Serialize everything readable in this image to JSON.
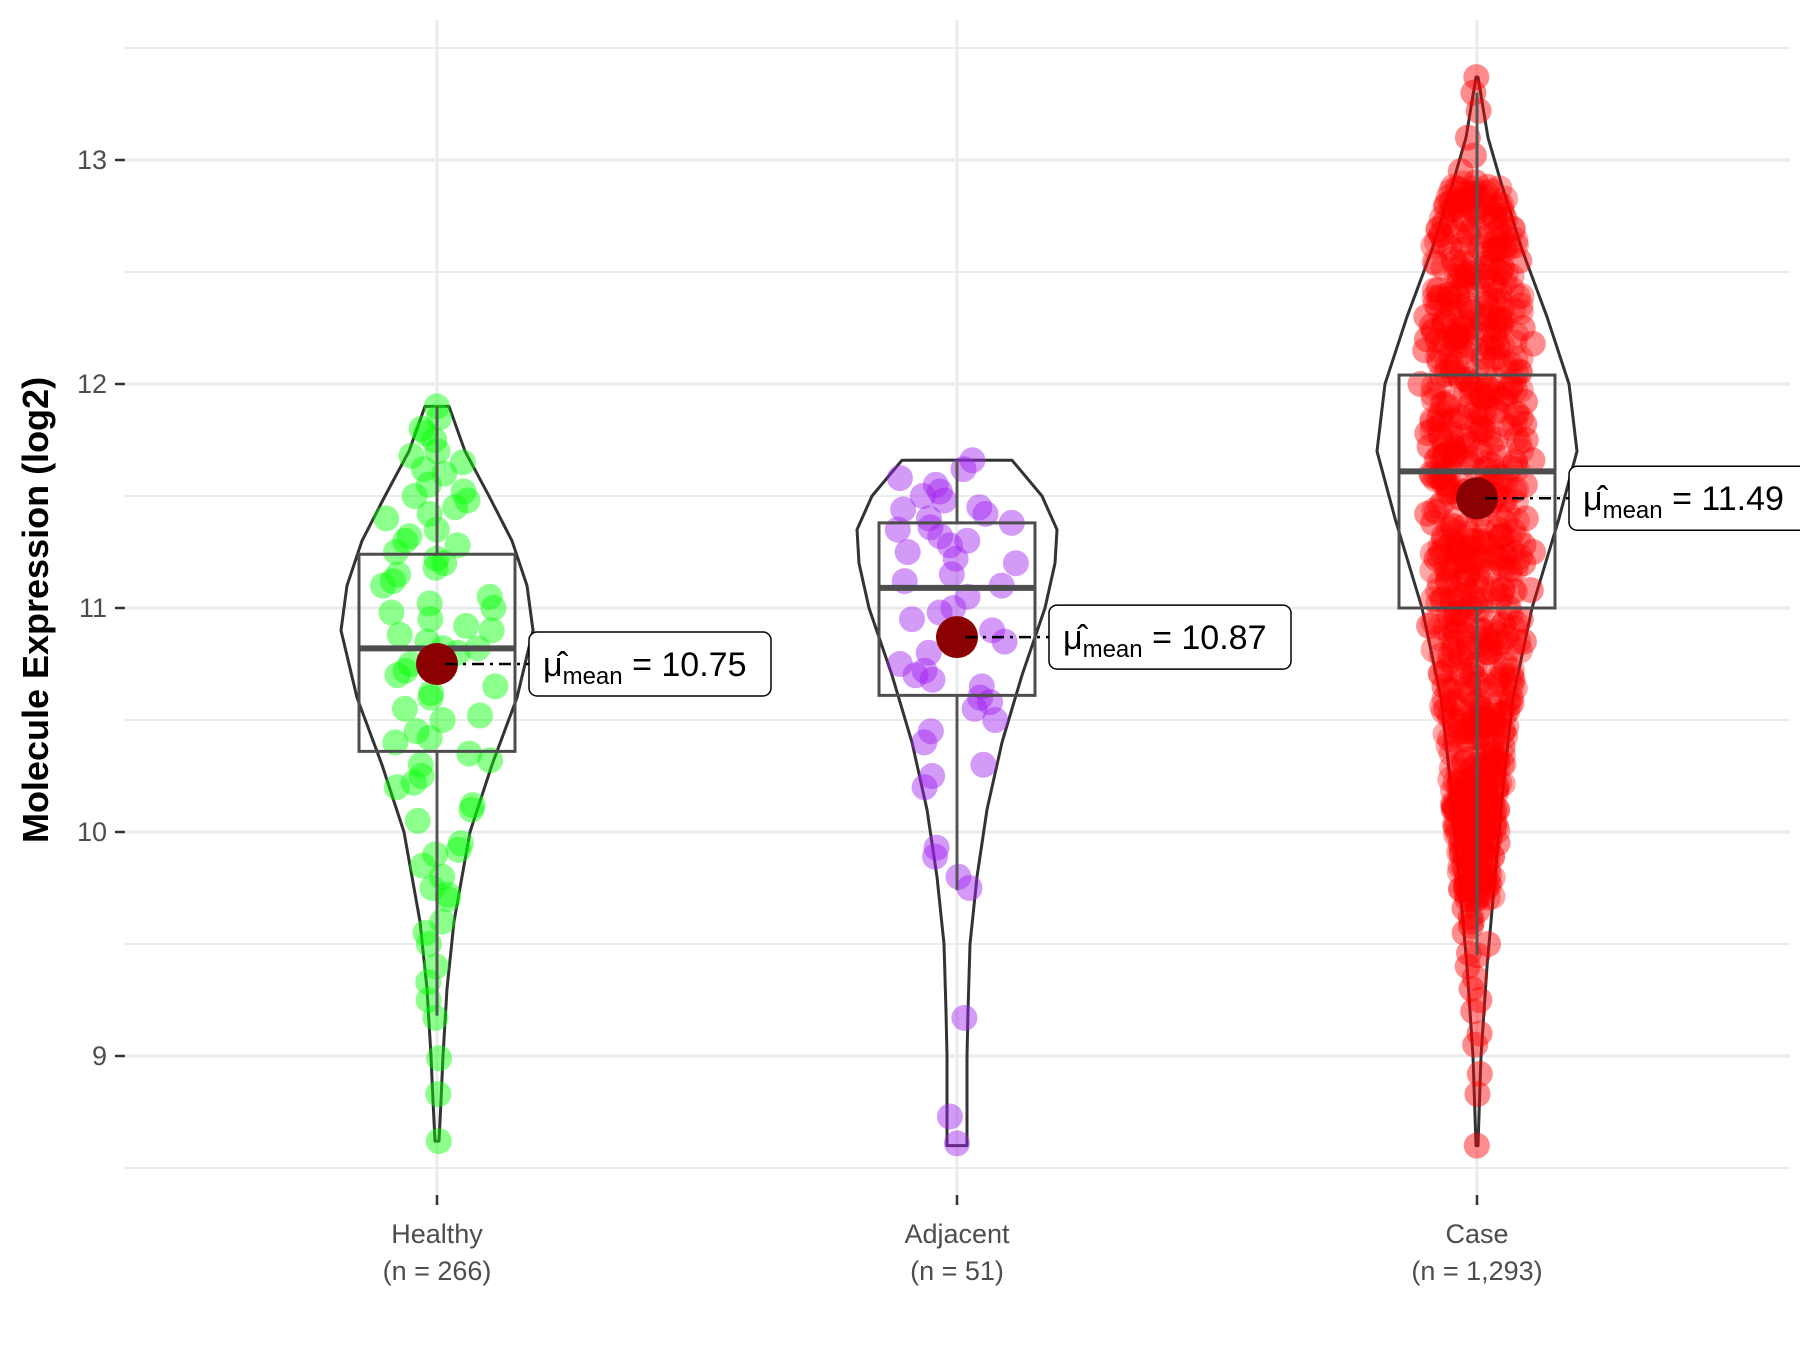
{
  "chart_data": {
    "type": "violin",
    "title": "",
    "xlabel": "",
    "ylabel": "Molecule Expression (log2)",
    "ylim": [
      8.5,
      13.5
    ],
    "yticks": [
      9,
      10,
      11,
      12,
      13
    ],
    "grid": true,
    "legend": "none",
    "mean_label_prefix": "μ̂",
    "mean_label_sub": "mean",
    "groups": [
      {
        "name": "Healthy",
        "n_label": "(n = 266)",
        "n": 266,
        "color": "#00ff00",
        "box": {
          "lower_whisker": 9.18,
          "q1": 10.36,
          "median": 10.82,
          "q3": 11.24,
          "upper_whisker": 11.9
        },
        "violin": {
          "min": 8.62,
          "max": 11.9,
          "profile": [
            [
              8.62,
              0.02
            ],
            [
              8.8,
              0.04
            ],
            [
              9.0,
              0.06
            ],
            [
              9.3,
              0.1
            ],
            [
              9.6,
              0.17
            ],
            [
              10.0,
              0.33
            ],
            [
              10.3,
              0.55
            ],
            [
              10.6,
              0.8
            ],
            [
              10.9,
              0.96
            ],
            [
              11.1,
              0.9
            ],
            [
              11.3,
              0.75
            ],
            [
              11.5,
              0.52
            ],
            [
              11.7,
              0.28
            ],
            [
              11.9,
              0.12
            ]
          ]
        },
        "mean": 10.75,
        "mean_label": "10.75",
        "points": [
          11.9,
          11.85,
          11.8,
          11.78,
          11.75,
          11.7,
          11.68,
          11.65,
          11.6,
          11.55,
          11.5,
          11.48,
          11.45,
          11.4,
          11.35,
          11.3,
          11.28,
          11.25,
          11.2,
          11.18,
          11.15,
          11.1,
          11.05,
          11.0,
          10.98,
          10.95,
          10.9,
          10.88,
          10.85,
          10.82,
          10.8,
          10.75,
          10.7,
          10.65,
          10.6,
          10.55,
          10.5,
          10.45,
          10.4,
          10.35,
          10.3,
          10.25,
          10.2,
          10.1,
          10.05,
          9.95,
          9.9,
          9.85,
          9.8,
          9.75,
          9.7,
          9.6,
          9.55,
          9.5,
          9.4,
          9.33,
          9.25,
          9.17,
          8.99,
          8.83,
          8.62,
          11.62,
          11.42,
          11.22,
          11.02,
          10.82,
          10.62,
          10.42,
          10.22,
          10.72,
          10.92,
          11.12,
          11.32,
          11.52,
          10.52,
          10.32,
          10.12,
          9.92,
          9.72
        ]
      },
      {
        "name": "Adjacent",
        "n_label": "(n = 51)",
        "n": 51,
        "color": "#a020f0",
        "box": {
          "lower_whisker": 9.74,
          "q1": 10.61,
          "median": 11.09,
          "q3": 11.38,
          "upper_whisker": 11.66
        },
        "violin": {
          "min": 8.6,
          "max": 11.66,
          "profile": [
            [
              8.6,
              0.1
            ],
            [
              8.8,
              0.1
            ],
            [
              9.0,
              0.1
            ],
            [
              9.2,
              0.11
            ],
            [
              9.5,
              0.13
            ],
            [
              9.8,
              0.2
            ],
            [
              10.1,
              0.3
            ],
            [
              10.4,
              0.45
            ],
            [
              10.7,
              0.65
            ],
            [
              11.0,
              0.88
            ],
            [
              11.2,
              0.98
            ],
            [
              11.35,
              1.0
            ],
            [
              11.5,
              0.85
            ],
            [
              11.66,
              0.55
            ]
          ]
        },
        "mean": 10.87,
        "mean_label": "10.87",
        "points": [
          11.66,
          11.62,
          11.58,
          11.55,
          11.52,
          11.5,
          11.48,
          11.45,
          11.42,
          11.4,
          11.38,
          11.35,
          11.32,
          11.3,
          11.28,
          11.25,
          11.2,
          11.15,
          11.1,
          11.05,
          11.0,
          10.95,
          10.9,
          10.85,
          10.8,
          10.75,
          10.7,
          10.65,
          10.6,
          10.55,
          10.5,
          10.45,
          10.3,
          10.25,
          10.2,
          9.93,
          9.89,
          9.8,
          9.75,
          9.17,
          8.73,
          8.61,
          11.44,
          11.36,
          11.22,
          11.12,
          10.98,
          10.72,
          10.68,
          10.58,
          10.4
        ]
      },
      {
        "name": "Case",
        "n_label": "(n = 1,293)",
        "n": 1293,
        "color": "#ff0000",
        "box": {
          "lower_whisker": 9.45,
          "q1": 11.0,
          "median": 11.61,
          "q3": 12.04,
          "upper_whisker": 13.3
        },
        "violin": {
          "min": 8.6,
          "max": 13.37,
          "profile": [
            [
              8.6,
              0.01
            ],
            [
              9.0,
              0.04
            ],
            [
              9.4,
              0.1
            ],
            [
              9.8,
              0.18
            ],
            [
              10.2,
              0.26
            ],
            [
              10.6,
              0.36
            ],
            [
              11.0,
              0.55
            ],
            [
              11.4,
              0.82
            ],
            [
              11.7,
              1.0
            ],
            [
              12.0,
              0.92
            ],
            [
              12.3,
              0.7
            ],
            [
              12.6,
              0.45
            ],
            [
              12.9,
              0.24
            ],
            [
              13.1,
              0.11
            ],
            [
              13.37,
              0.01
            ]
          ]
        },
        "mean": 11.49,
        "mean_label": "11.49",
        "points": [
          13.37,
          13.3,
          13.22,
          13.1,
          13.02,
          12.95,
          12.9,
          12.85,
          12.8,
          12.75,
          12.7,
          12.65,
          12.6,
          12.55,
          12.5,
          12.45,
          12.4,
          12.35,
          12.3,
          12.25,
          12.2,
          12.15,
          12.1,
          12.05,
          12.0,
          11.95,
          11.9,
          11.85,
          11.8,
          11.75,
          11.7,
          11.65,
          11.6,
          11.55,
          11.5,
          11.45,
          11.4,
          11.35,
          11.3,
          11.25,
          11.2,
          11.15,
          11.1,
          11.05,
          11.0,
          10.95,
          10.9,
          10.85,
          10.8,
          10.75,
          10.7,
          10.65,
          10.6,
          10.55,
          10.5,
          10.45,
          10.4,
          10.35,
          10.3,
          10.25,
          10.2,
          10.15,
          10.1,
          10.05,
          10.0,
          9.95,
          9.9,
          9.85,
          9.8,
          9.75,
          9.7,
          9.65,
          9.6,
          9.55,
          9.5,
          9.45,
          9.4,
          9.35,
          9.3,
          9.25,
          9.2,
          9.1,
          9.05,
          8.92,
          8.83,
          8.6,
          12.62,
          12.42,
          12.22,
          12.02,
          11.82,
          11.62,
          11.42,
          11.22,
          11.02,
          10.82,
          10.62,
          10.42,
          10.22,
          10.02,
          12.72,
          12.52,
          12.32,
          12.12,
          11.92,
          11.72,
          11.52,
          11.32,
          11.12,
          10.92,
          10.72,
          10.52,
          10.32,
          10.12,
          9.82,
          9.62,
          12.48,
          12.28,
          12.08,
          11.88,
          11.68,
          11.48,
          11.28,
          11.08,
          10.88,
          10.68,
          10.48,
          10.28,
          11.78,
          11.58,
          11.38,
          11.18,
          11.98,
          12.18,
          12.38,
          10.98,
          10.78,
          10.58,
          10.38,
          10.18,
          9.98,
          9.78,
          9.58,
          12.58,
          12.78,
          12.88,
          11.66,
          11.46,
          11.26,
          11.06,
          11.86,
          12.06,
          12.26,
          12.46,
          12.66,
          10.66,
          10.46,
          10.26,
          10.06,
          9.86,
          9.66,
          9.46
        ]
      }
    ]
  }
}
